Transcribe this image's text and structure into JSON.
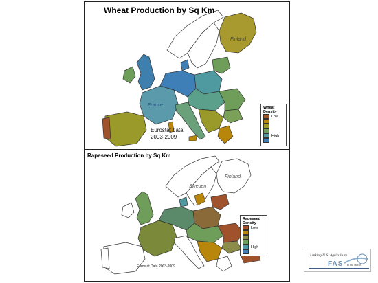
{
  "wheat_panel": {
    "title": "Wheat Production by Sq Km",
    "source_note_line1": "Eurostat data",
    "source_note_line2": "2003-2009",
    "legend": {
      "title_line1": "Wheat",
      "title_line2": "Density",
      "low_label": "Low",
      "high_label": "High",
      "colors": [
        "#a0522d",
        "#b8860b",
        "#9a9a2a",
        "#6e9e5a",
        "#4f9aa0",
        "#3e7fb8"
      ]
    },
    "map_labels": [
      "Finland",
      "France"
    ]
  },
  "rapeseed_panel": {
    "title": "Rapeseed Production by Sq Km",
    "source_note": "Eurostat Data 2003-2009",
    "legend": {
      "title_line1": "Rapeseed",
      "title_line2": "Density",
      "low_label": "Low",
      "high_label": "High",
      "colors": [
        "#a0522d",
        "#b8860b",
        "#8b8b4a",
        "#6e9e5a",
        "#4f9aa0",
        "#3e7fb8"
      ]
    },
    "map_labels": [
      "Sweden",
      "Finland"
    ]
  },
  "logo": {
    "tagline": "Linking U.S. Agriculture",
    "wordmark": "FAS",
    "suffix": "to the World"
  }
}
